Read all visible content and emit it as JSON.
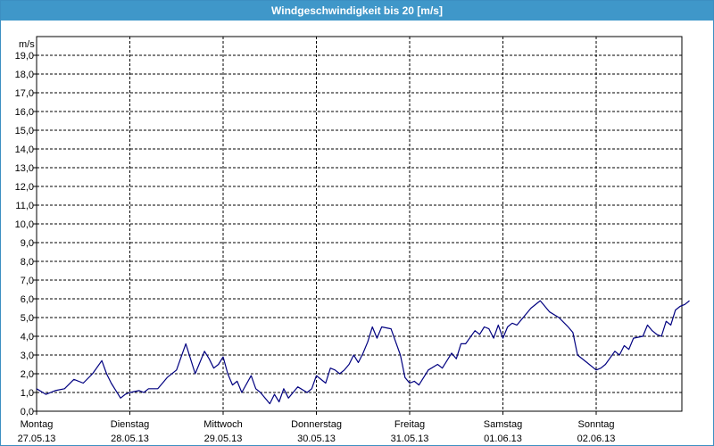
{
  "window": {
    "title": "Windgeschwindigkeit bis 20 [m/s]"
  },
  "colors": {
    "title_bar": "#3f97c9",
    "line": "#000080",
    "grid": "#000000"
  },
  "chart_data": {
    "type": "line",
    "title": "Windgeschwindigkeit bis 20 [m/s]",
    "ylabel": "m/s",
    "ylim": [
      0,
      20
    ],
    "grid": true,
    "legend": "none",
    "y_ticks": [
      "0,0",
      "1,0",
      "2,0",
      "3,0",
      "4,0",
      "5,0",
      "6,0",
      "7,0",
      "8,0",
      "9,0",
      "10,0",
      "11,0",
      "12,0",
      "13,0",
      "14,0",
      "15,0",
      "16,0",
      "17,0",
      "18,0",
      "19,0"
    ],
    "x_ticks": [
      {
        "day": "Montag",
        "date": "27.05.13"
      },
      {
        "day": "Dienstag",
        "date": "28.05.13"
      },
      {
        "day": "Mittwoch",
        "date": "29.05.13"
      },
      {
        "day": "Donnerstag",
        "date": "30.05.13"
      },
      {
        "day": "Freitag",
        "date": "31.05.13"
      },
      {
        "day": "Samstag",
        "date": "01.06.13"
      },
      {
        "day": "Sonntag",
        "date": "02.06.13"
      }
    ],
    "x_range_days": [
      0,
      7
    ],
    "series": [
      {
        "x": [
          0,
          0.1,
          0.2,
          0.3,
          0.4,
          0.5,
          0.6,
          0.7,
          0.75,
          0.8,
          0.9,
          0.95,
          1.0,
          1.1,
          1.15,
          1.2,
          1.3,
          1.35,
          1.4,
          1.5,
          1.55,
          1.6,
          1.7,
          1.8,
          1.85,
          1.9,
          1.95,
          2.0,
          2.05,
          2.1,
          2.15,
          2.2,
          2.3,
          2.35,
          2.4,
          2.5,
          2.55,
          2.6,
          2.65,
          2.7,
          2.75,
          2.8,
          2.9,
          2.95,
          3.0,
          3.1,
          3.15,
          3.2,
          3.25,
          3.3,
          3.35,
          3.4,
          3.45,
          3.5,
          3.55,
          3.6,
          3.65,
          3.7,
          3.8,
          3.9,
          3.95,
          4.0,
          4.05,
          4.1,
          4.2,
          4.3,
          4.35,
          4.4,
          4.45,
          4.5,
          4.55,
          4.6,
          4.7,
          4.75,
          4.8,
          4.85,
          4.9,
          4.95,
          5.0,
          5.05,
          5.1,
          5.15,
          5.2,
          5.3,
          5.4,
          5.5,
          5.6,
          5.7,
          5.75,
          5.8,
          5.9,
          6.0,
          6.05,
          6.1,
          6.2,
          6.25,
          6.3,
          6.35,
          6.4,
          6.5,
          6.55,
          6.6,
          6.65,
          6.7,
          6.75,
          6.8,
          6.85,
          6.9,
          6.95,
          7.0
        ],
        "y": [
          1.2,
          0.9,
          1.1,
          1.2,
          1.7,
          1.5,
          2.0,
          2.7,
          2.0,
          1.5,
          0.7,
          0.9,
          1.0,
          1.1,
          1.0,
          1.2,
          1.2,
          1.5,
          1.8,
          2.2,
          2.9,
          3.6,
          2.0,
          3.2,
          2.8,
          2.3,
          2.5,
          2.9,
          2.0,
          1.4,
          1.6,
          1.0,
          1.9,
          1.2,
          1.0,
          0.4,
          0.9,
          0.5,
          1.2,
          0.7,
          1.0,
          1.3,
          1.0,
          1.2,
          1.9,
          1.5,
          2.3,
          2.2,
          2.0,
          2.2,
          2.5,
          3.0,
          2.6,
          3.1,
          3.7,
          4.5,
          3.9,
          4.5,
          4.4,
          3.0,
          1.8,
          1.5,
          1.6,
          1.4,
          2.2,
          2.5,
          2.3,
          2.7,
          3.1,
          2.8,
          3.6,
          3.6,
          4.3,
          4.1,
          4.5,
          4.4,
          3.9,
          4.6,
          3.9,
          4.5,
          4.7,
          4.6,
          4.9,
          5.5,
          5.9,
          5.3,
          5.0,
          4.5,
          4.2,
          3.0,
          2.6,
          2.2,
          2.3,
          2.5,
          3.2,
          3.0,
          3.5,
          3.3,
          3.9,
          4.0,
          4.6,
          4.3,
          4.1,
          4.0,
          4.8,
          4.6,
          5.4,
          5.6,
          5.7,
          5.9
        ]
      }
    ]
  }
}
